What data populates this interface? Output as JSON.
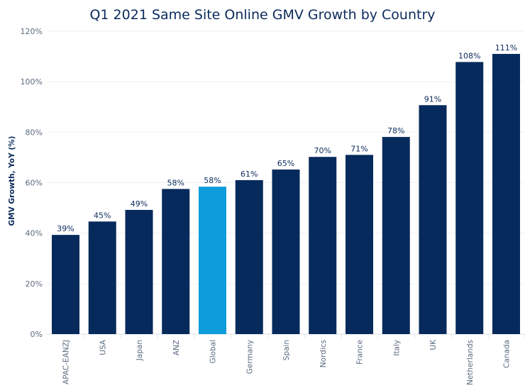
{
  "chart_data": {
    "type": "bar",
    "title": "Q1 2021 Same Site Online GMV Growth by Country",
    "xlabel": "",
    "ylabel": "GMV Growth, YoY (%)",
    "ylim": [
      0,
      120
    ],
    "yticks": [
      0,
      20,
      40,
      60,
      80,
      100,
      120
    ],
    "ytick_labels": [
      "0%",
      "20%",
      "40%",
      "60%",
      "80%",
      "100%",
      "120%"
    ],
    "grid": true,
    "categories": [
      "APAC-EANZJ",
      "USA",
      "Japan",
      "ANZ",
      "Global",
      "Germany",
      "Spain",
      "Nordics",
      "France",
      "Italy",
      "UK",
      "Netherlands",
      "Canada"
    ],
    "values": [
      39.3,
      44.6,
      49.2,
      57.5,
      58.4,
      61,
      65.2,
      70.2,
      71,
      78.1,
      90.7,
      107.8,
      111
    ],
    "data_labels": [
      "39%",
      "45%",
      "49%",
      "58%",
      "58%",
      "61%",
      "65%",
      "70%",
      "71%",
      "78%",
      "91%",
      "108%",
      "111%"
    ],
    "highlight_category": "Global",
    "colors": {
      "default": "#062a5c",
      "highlight": "#0f9cdb",
      "grid": "#eef0f3"
    }
  }
}
